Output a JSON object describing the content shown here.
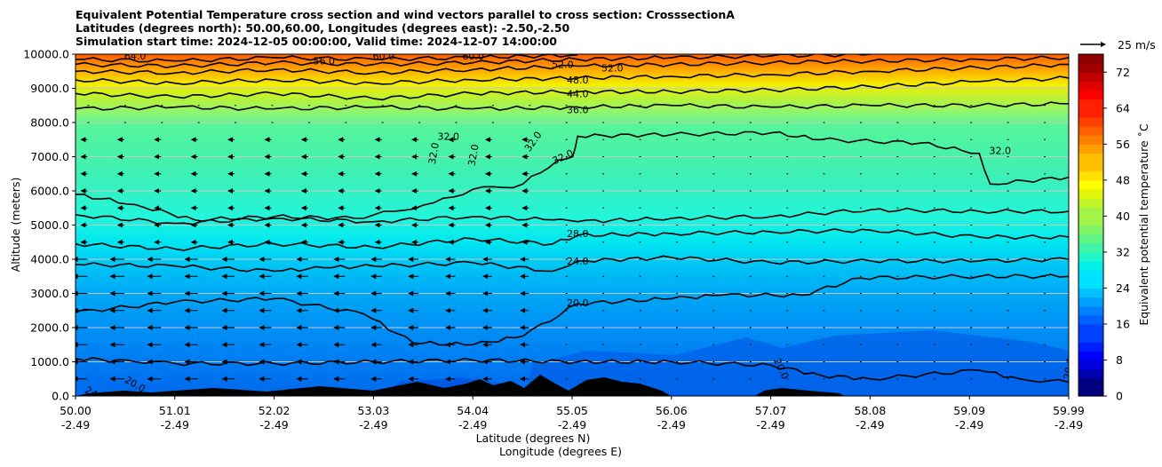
{
  "chart_data": {
    "type": "heatmap",
    "subtype": "filled-contour cross section with wind vectors",
    "title_lines": [
      "Equivalent Potential Temperature cross section and wind vectors parallel to cross section: CrosssectionA",
      "Latitudes (degrees north): 50.00,60.00, Longitudes (degrees east): -2.50,-2.50",
      "Simulation start time: 2024-12-05 00:00:00, Valid time: 2024-12-07 14:00:00"
    ],
    "xlabel_lat": "Latitude (degrees N)",
    "xlabel_lon": "Longitude (degrees E)",
    "ylabel": "Altitude (meters)",
    "colorbar_label": "Equivalent potential temperature ˚C",
    "vector_key": "25 m/s",
    "xlim": [
      50.0,
      59.99
    ],
    "ylim": [
      0,
      10000
    ],
    "x_ticks": [
      {
        "lat": "50.00",
        "lon": "-2.49"
      },
      {
        "lat": "51.01",
        "lon": "-2.49"
      },
      {
        "lat": "52.02",
        "lon": "-2.49"
      },
      {
        "lat": "53.03",
        "lon": "-2.49"
      },
      {
        "lat": "54.04",
        "lon": "-2.49"
      },
      {
        "lat": "55.05",
        "lon": "-2.49"
      },
      {
        "lat": "56.06",
        "lon": "-2.49"
      },
      {
        "lat": "57.07",
        "lon": "-2.49"
      },
      {
        "lat": "58.08",
        "lon": "-2.49"
      },
      {
        "lat": "59.09",
        "lon": "-2.49"
      },
      {
        "lat": "59.99",
        "lon": "-2.49"
      }
    ],
    "y_ticks": [
      "0.0",
      "1000.0",
      "2000.0",
      "3000.0",
      "4000.0",
      "5000.0",
      "6000.0",
      "7000.0",
      "8000.0",
      "9000.0",
      "10000.0"
    ],
    "y_tick_values": [
      0,
      1000,
      2000,
      3000,
      4000,
      5000,
      6000,
      7000,
      8000,
      9000,
      10000
    ],
    "colorbar_ticks": [
      "0",
      "8",
      "16",
      "24",
      "32",
      "40",
      "48",
      "56",
      "64",
      "72"
    ],
    "colorbar_range": [
      0,
      76
    ],
    "contour_levels": [
      20,
      24,
      28,
      32,
      36,
      44,
      48,
      52,
      56,
      60,
      64
    ],
    "contour_labels": [
      "64.0",
      "56.0",
      "60.0",
      "60.0",
      "52.0",
      "52.0",
      "48.0",
      "44.0",
      "36.0",
      "32.0",
      "32.0",
      "32.0",
      "32.0",
      "32.0",
      "32.0",
      "28.0",
      "24.0",
      "20.0",
      "20.0",
      "20.0",
      "24.0",
      "20.0"
    ],
    "contours": [
      {
        "level": 20,
        "points": [
          [
            50.0,
            2450
          ],
          [
            51.0,
            2750
          ],
          [
            52.0,
            2850
          ],
          [
            52.9,
            2400
          ],
          [
            53.4,
            1550
          ],
          [
            54.0,
            1500
          ],
          [
            54.5,
            1750
          ],
          [
            55.05,
            2700
          ],
          [
            56.0,
            2850
          ],
          [
            56.5,
            2950
          ],
          [
            57.3,
            2950
          ],
          [
            57.9,
            3450
          ],
          [
            59.09,
            3500
          ],
          [
            59.99,
            3500
          ]
        ]
      },
      {
        "level": 24,
        "points": [
          [
            50.0,
            3850
          ],
          [
            51.0,
            3800
          ],
          [
            52.0,
            3650
          ],
          [
            52.5,
            3750
          ],
          [
            53.0,
            3800
          ],
          [
            54.0,
            3900
          ],
          [
            54.8,
            3650
          ],
          [
            55.05,
            3950
          ],
          [
            56.0,
            4050
          ],
          [
            57.0,
            3900
          ],
          [
            58.0,
            3950
          ],
          [
            59.09,
            3950
          ],
          [
            59.99,
            4000
          ]
        ]
      },
      {
        "level": 28,
        "points": [
          [
            50.0,
            4450
          ],
          [
            51.0,
            4300
          ],
          [
            52.0,
            4450
          ],
          [
            53.0,
            4350
          ],
          [
            54.0,
            4600
          ],
          [
            54.8,
            4450
          ],
          [
            55.05,
            4700
          ],
          [
            56.0,
            4750
          ],
          [
            57.0,
            4800
          ],
          [
            58.0,
            4850
          ],
          [
            59.09,
            4650
          ],
          [
            59.99,
            4650
          ]
        ]
      },
      {
        "level": 28,
        "points": [
          [
            50.0,
            5300
          ],
          [
            51.0,
            5050
          ],
          [
            52.0,
            5200
          ],
          [
            53.0,
            5100
          ],
          [
            54.0,
            5250
          ],
          [
            54.8,
            5150
          ],
          [
            55.05,
            5100
          ],
          [
            56.0,
            5200
          ],
          [
            57.0,
            5250
          ],
          [
            58.0,
            5450
          ],
          [
            59.09,
            5400
          ],
          [
            59.99,
            5400
          ]
        ]
      },
      {
        "level": 32,
        "points": [
          [
            50.0,
            5900
          ],
          [
            50.6,
            5600
          ],
          [
            51.2,
            5150
          ],
          [
            52.0,
            5250
          ],
          [
            52.8,
            5200
          ],
          [
            53.2,
            5400
          ],
          [
            53.6,
            5650
          ],
          [
            54.0,
            6050
          ],
          [
            54.3,
            6100
          ],
          [
            54.5,
            6200
          ],
          [
            54.85,
            6900
          ],
          [
            55.0,
            7000
          ],
          [
            55.05,
            7600
          ],
          [
            56.0,
            7650
          ],
          [
            57.0,
            7700
          ],
          [
            57.5,
            7500
          ],
          [
            58.5,
            7400
          ],
          [
            59.09,
            7100
          ],
          [
            59.2,
            6200
          ],
          [
            59.99,
            6400
          ]
        ]
      },
      {
        "level": 36,
        "points": [
          [
            50.0,
            8400
          ],
          [
            51.0,
            8450
          ],
          [
            52.0,
            8400
          ],
          [
            53.0,
            8450
          ],
          [
            54.0,
            8400
          ],
          [
            55.05,
            8450
          ],
          [
            56.0,
            8500
          ],
          [
            57.0,
            8450
          ],
          [
            58.0,
            8500
          ],
          [
            59.09,
            8500
          ],
          [
            59.99,
            8550
          ]
        ]
      },
      {
        "level": 44,
        "points": [
          [
            50.0,
            8850
          ],
          [
            51.0,
            8750
          ],
          [
            52.0,
            8850
          ],
          [
            53.0,
            8700
          ],
          [
            54.0,
            8850
          ],
          [
            55.05,
            8900
          ],
          [
            56.0,
            8900
          ],
          [
            57.0,
            8950
          ],
          [
            58.0,
            9050
          ],
          [
            59.09,
            9200
          ],
          [
            59.99,
            9300
          ]
        ]
      },
      {
        "level": 48,
        "points": [
          [
            50.0,
            9250
          ],
          [
            51.0,
            9150
          ],
          [
            52.0,
            9250
          ],
          [
            53.0,
            9150
          ],
          [
            54.0,
            9250
          ],
          [
            55.05,
            9300
          ],
          [
            56.0,
            9350
          ],
          [
            57.0,
            9400
          ],
          [
            58.0,
            9500
          ],
          [
            59.09,
            9600
          ],
          [
            59.99,
            9700
          ]
        ]
      },
      {
        "level": 52,
        "points": [
          [
            50.0,
            9500
          ],
          [
            51.0,
            9450
          ],
          [
            52.0,
            9550
          ],
          [
            53.0,
            9450
          ],
          [
            54.0,
            9550
          ],
          [
            55.05,
            9650
          ],
          [
            56.0,
            9700
          ],
          [
            57.0,
            9750
          ],
          [
            58.0,
            9800
          ],
          [
            59.09,
            9850
          ],
          [
            59.99,
            9900
          ]
        ]
      },
      {
        "level": 56,
        "points": [
          [
            50.0,
            9700
          ],
          [
            51.0,
            9650
          ],
          [
            52.0,
            9750
          ],
          [
            53.0,
            9700
          ],
          [
            54.0,
            9750
          ],
          [
            55.05,
            9850
          ],
          [
            56.0,
            9900
          ],
          [
            57.0,
            9950
          ],
          [
            58.0,
            10000
          ]
        ]
      },
      {
        "level": 60,
        "points": [
          [
            50.0,
            9850
          ],
          [
            51.0,
            9800
          ],
          [
            52.0,
            9900
          ],
          [
            53.0,
            9850
          ],
          [
            54.0,
            9900
          ],
          [
            55.05,
            9980
          ]
        ]
      },
      {
        "level": 20,
        "points": [
          [
            50.0,
            1100
          ],
          [
            50.6,
            1000
          ],
          [
            51.0,
            950
          ],
          [
            52.0,
            950
          ],
          [
            53.0,
            1000
          ],
          [
            54.0,
            1050
          ],
          [
            55.05,
            1000
          ],
          [
            56.0,
            1000
          ],
          [
            57.0,
            900
          ],
          [
            57.5,
            600
          ],
          [
            58.0,
            500
          ],
          [
            59.09,
            750
          ],
          [
            59.5,
            500
          ],
          [
            59.99,
            400
          ]
        ]
      }
    ]
  }
}
